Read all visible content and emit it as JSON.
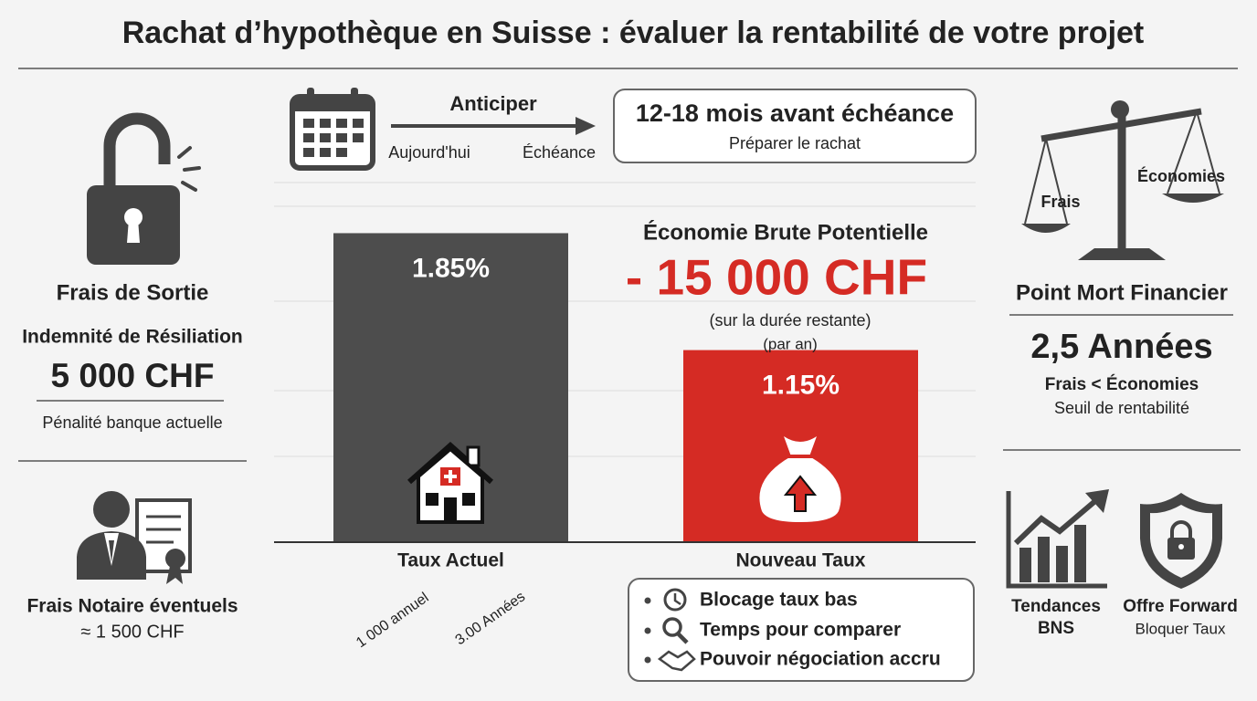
{
  "title": "Rachat d’hypothèque en Suisse : évaluer la rentabilité de votre projet",
  "exit_fees": {
    "heading": "Frais de Sortie",
    "subheading": "Indemnité de Résiliation",
    "amount": "5 000 CHF",
    "note": "Pénalité banque actuelle"
  },
  "notary": {
    "heading": "Frais Notaire éventuels",
    "amount": "≈ 1 500 CHF"
  },
  "timeline": {
    "label": "Anticiper",
    "start": "Aujourd'hui",
    "end": "Échéance",
    "box_title": "12-18 mois avant échéance",
    "box_subtitle": "Préparer le rachat"
  },
  "rates": {
    "bars": [
      {
        "name": "Taux Actuel",
        "value": 1.85,
        "value_label": "1.85%",
        "color": "#4d4d4d"
      },
      {
        "name": "Nouveau Taux",
        "value": 1.15,
        "value_label": "1.15%",
        "color": "#d52b24"
      }
    ],
    "axis_notes": [
      "1 000 annuel",
      "3.00 Années"
    ]
  },
  "savings": {
    "heading": "Économie Brute Potentielle",
    "amount": "- 15 000 CHF",
    "note1": "(sur la durée restante)",
    "note2": "(par an)"
  },
  "benefits": [
    "Blocage taux bas",
    "Temps pour comparer",
    "Pouvoir négociation accru"
  ],
  "scale_labels": {
    "left": "Frais",
    "right": "Économies"
  },
  "break_even": {
    "heading": "Point Mort Financier",
    "value": "2,5 Années",
    "formula": "Frais < Économies",
    "note": "Seuil de rentabilité"
  },
  "trends": {
    "line1": "Tendances",
    "line2": "BNS"
  },
  "forward": {
    "title": "Offre Forward",
    "subtitle": "Bloquer Taux"
  }
}
